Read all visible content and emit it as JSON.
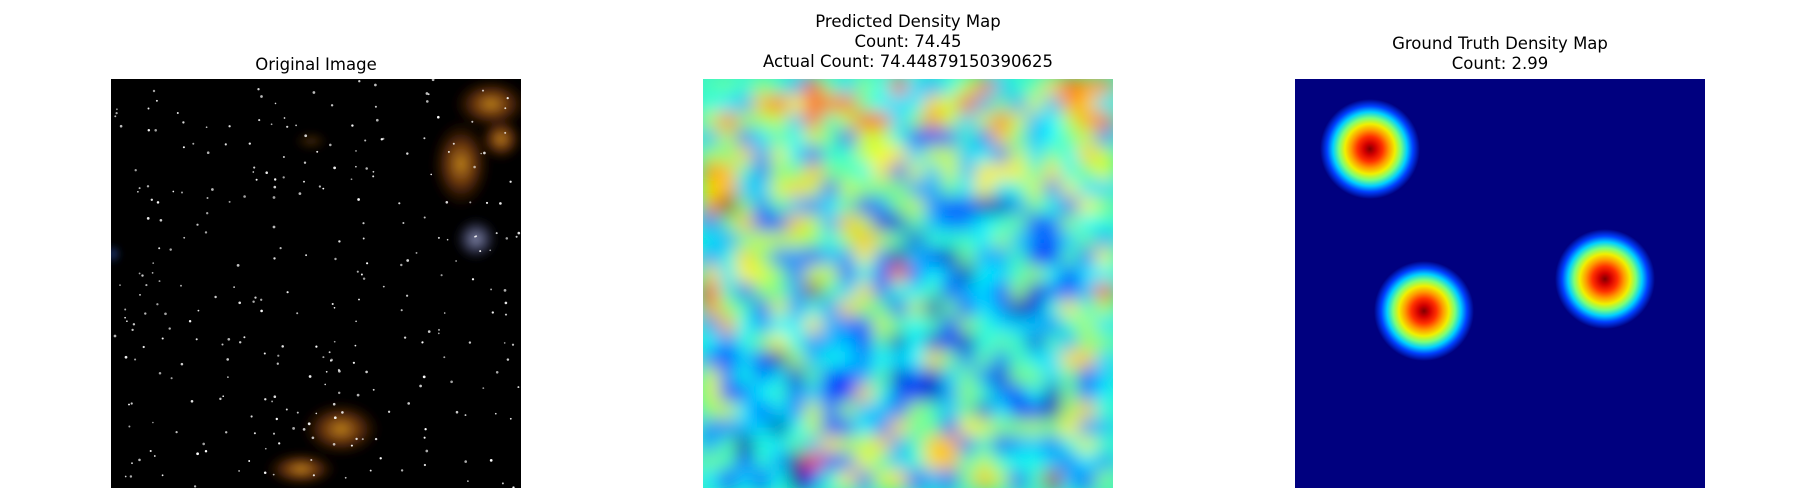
{
  "panels": [
    {
      "name": "original",
      "title_lines": [
        "Original Image"
      ]
    },
    {
      "name": "predicted",
      "title_lines": [
        "Predicted Density Map",
        "Count: 74.45",
        "Actual Count: 74.44879150390625"
      ]
    },
    {
      "name": "ground-truth",
      "title_lines": [
        "Ground Truth Density Map",
        "Count: 2.99"
      ]
    }
  ],
  "colors": {
    "background": "#ffffff",
    "jet_low": "#00007f",
    "jet_high": "#7f0000"
  }
}
